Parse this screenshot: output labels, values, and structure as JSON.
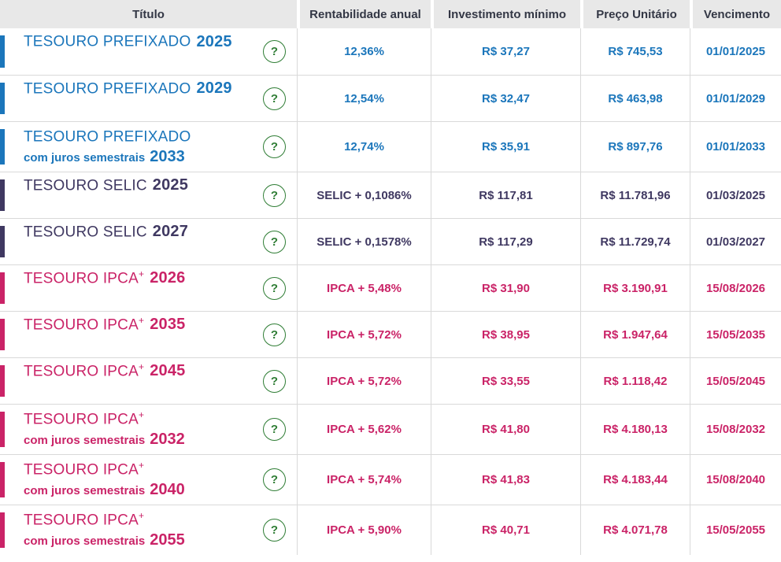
{
  "colors": {
    "blue": "#1b76bb",
    "navy": "#3f3861",
    "pink": "#ca2367",
    "green": "#2f7d35",
    "headbg": "#e8e8e8",
    "headtext": "#333745",
    "border": "#d9d9d9"
  },
  "help_icon": "?",
  "header": {
    "columns": [
      "Título",
      "Rentabilidade anual",
      "Investimento mínimo",
      "Preço Unitário",
      "Vencimento"
    ]
  },
  "rows": [
    {
      "theme": "blue",
      "t1": "TESOURO PREFIXADO",
      "sup": "",
      "y1": "2025",
      "t2": "",
      "y2": "",
      "rate": "12,36%",
      "min": "R$ 37,27",
      "price": "R$ 745,53",
      "due": "01/01/2025"
    },
    {
      "theme": "blue",
      "t1": "TESOURO PREFIXADO",
      "sup": "",
      "y1": "2029",
      "t2": "",
      "y2": "",
      "rate": "12,54%",
      "min": "R$ 32,47",
      "price": "R$ 463,98",
      "due": "01/01/2029"
    },
    {
      "theme": "blue",
      "t1": "TESOURO PREFIXADO",
      "sup": "",
      "y1": "",
      "t2": "com juros semestrais",
      "y2": "2033",
      "rate": "12,74%",
      "min": "R$ 35,91",
      "price": "R$ 897,76",
      "due": "01/01/2033"
    },
    {
      "theme": "navy",
      "t1": "TESOURO SELIC",
      "sup": "",
      "y1": "2025",
      "t2": "",
      "y2": "",
      "rate": "SELIC + 0,1086%",
      "min": "R$ 117,81",
      "price": "R$ 11.781,96",
      "due": "01/03/2025"
    },
    {
      "theme": "navy",
      "t1": "TESOURO SELIC",
      "sup": "",
      "y1": "2027",
      "t2": "",
      "y2": "",
      "rate": "SELIC + 0,1578%",
      "min": "R$ 117,29",
      "price": "R$ 11.729,74",
      "due": "01/03/2027"
    },
    {
      "theme": "pink",
      "t1": "TESOURO IPCA",
      "sup": "+",
      "y1": "2026",
      "t2": "",
      "y2": "",
      "rate": "IPCA + 5,48%",
      "min": "R$ 31,90",
      "price": "R$ 3.190,91",
      "due": "15/08/2026"
    },
    {
      "theme": "pink",
      "t1": "TESOURO IPCA",
      "sup": "+",
      "y1": "2035",
      "t2": "",
      "y2": "",
      "rate": "IPCA + 5,72%",
      "min": "R$ 38,95",
      "price": "R$ 1.947,64",
      "due": "15/05/2035"
    },
    {
      "theme": "pink",
      "t1": "TESOURO IPCA",
      "sup": "+",
      "y1": "2045",
      "t2": "",
      "y2": "",
      "rate": "IPCA + 5,72%",
      "min": "R$ 33,55",
      "price": "R$ 1.118,42",
      "due": "15/05/2045"
    },
    {
      "theme": "pink",
      "t1": "TESOURO IPCA",
      "sup": "+",
      "y1": "",
      "t2": "com juros semestrais",
      "y2": "2032",
      "rate": "IPCA + 5,62%",
      "min": "R$ 41,80",
      "price": "R$ 4.180,13",
      "due": "15/08/2032"
    },
    {
      "theme": "pink",
      "t1": "TESOURO IPCA",
      "sup": "+",
      "y1": "",
      "t2": "com juros semestrais",
      "y2": "2040",
      "rate": "IPCA + 5,74%",
      "min": "R$ 41,83",
      "price": "R$ 4.183,44",
      "due": "15/08/2040"
    },
    {
      "theme": "pink",
      "t1": "TESOURO IPCA",
      "sup": "+",
      "y1": "",
      "t2": "com juros semestrais",
      "y2": "2055",
      "rate": "IPCA + 5,90%",
      "min": "R$ 40,71",
      "price": "R$ 4.071,78",
      "due": "15/05/2055"
    }
  ]
}
